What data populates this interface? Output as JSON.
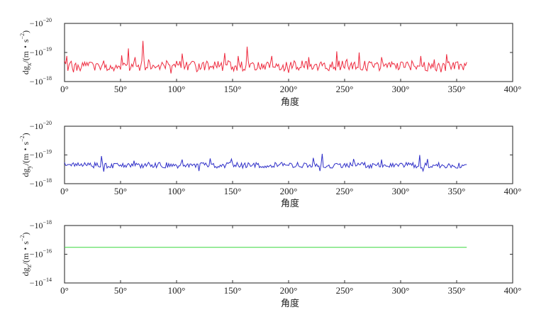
{
  "chart_data": [
    {
      "type": "line",
      "xlabel": "角度",
      "ylabel_main": "dg",
      "ylabel_sub": "x",
      "ylabel_unit": "/(m・s",
      "ylabel_exp": "−2",
      "ylabel_close": ")",
      "xlim": [
        0,
        400
      ],
      "x_ticks": [
        "0°",
        "50°",
        "100°",
        "150°",
        "200°",
        "250°",
        "300°",
        "350°",
        "400°"
      ],
      "y_ticks": [
        {
          "base": "−10",
          "exp": "−20"
        },
        {
          "base": "−10",
          "exp": "−19"
        },
        {
          "base": "−10",
          "exp": "−18"
        }
      ],
      "color": "#ee2b3f",
      "noise_amp": 0.09,
      "noise_base": 0.73,
      "spikes": [
        [
          2,
          0.56
        ],
        [
          22,
          0.67
        ],
        [
          35,
          0.64
        ],
        [
          51,
          0.55
        ],
        [
          57,
          0.43
        ],
        [
          63,
          0.58
        ],
        [
          70,
          0.3
        ],
        [
          75,
          0.62
        ],
        [
          95,
          0.65
        ],
        [
          105,
          0.52
        ],
        [
          143,
          0.51
        ],
        [
          155,
          0.56
        ],
        [
          163,
          0.4
        ],
        [
          185,
          0.56
        ],
        [
          200,
          0.62
        ],
        [
          218,
          0.58
        ],
        [
          243,
          0.48
        ],
        [
          252,
          0.62
        ],
        [
          263,
          0.5
        ],
        [
          283,
          0.58
        ],
        [
          318,
          0.56
        ],
        [
          330,
          0.62
        ],
        [
          341,
          0.53
        ]
      ],
      "dips": [
        [
          8,
          0.84
        ],
        [
          95,
          0.86
        ],
        [
          118,
          0.83
        ],
        [
          200,
          0.85
        ],
        [
          336,
          0.84
        ]
      ],
      "x_range": [
        0,
        359
      ]
    },
    {
      "type": "line",
      "xlabel": "角度",
      "ylabel_main": "dg",
      "ylabel_sub": "y",
      "ylabel_unit": "/(m・s",
      "ylabel_exp": "−2",
      "ylabel_close": ")",
      "xlim": [
        0,
        400
      ],
      "x_ticks": [
        "0°",
        "50°",
        "100°",
        "150°",
        "200°",
        "250°",
        "300°",
        "350°",
        "400°"
      ],
      "y_ticks": [
        {
          "base": "−10",
          "exp": "−20"
        },
        {
          "base": "−10",
          "exp": "−19"
        },
        {
          "base": "−10",
          "exp": "−18"
        }
      ],
      "color": "#2f2fc8",
      "noise_amp": 0.05,
      "noise_base": 0.68,
      "spikes": [
        [
          33,
          0.52
        ],
        [
          62,
          0.6
        ],
        [
          105,
          0.58
        ],
        [
          130,
          0.56
        ],
        [
          149,
          0.57
        ],
        [
          222,
          0.55
        ],
        [
          230,
          0.48
        ],
        [
          258,
          0.57
        ],
        [
          283,
          0.58
        ],
        [
          317,
          0.5
        ],
        [
          324,
          0.57
        ]
      ],
      "dips": [
        [
          35,
          0.79
        ],
        [
          120,
          0.78
        ],
        [
          228,
          0.78
        ],
        [
          320,
          0.78
        ]
      ],
      "x_range": [
        0,
        359
      ]
    },
    {
      "type": "line",
      "xlabel": "角度",
      "ylabel_main": "dg",
      "ylabel_sub": "z",
      "ylabel_unit": "/(m・s",
      "ylabel_exp": "−2",
      "ylabel_close": ")",
      "xlim": [
        0,
        400
      ],
      "x_ticks": [
        "0°",
        "50°",
        "100°",
        "150°",
        "200°",
        "250°",
        "300°",
        "350°",
        "400°"
      ],
      "y_ticks": [
        {
          "base": "−10",
          "exp": "−18"
        },
        {
          "base": "−10",
          "exp": "−16"
        },
        {
          "base": "−10",
          "exp": "−14"
        }
      ],
      "color": "#39d83f",
      "noise_amp": 0,
      "noise_base": 0.38,
      "spikes": [],
      "dips": [],
      "x_range": [
        0,
        359
      ]
    }
  ]
}
